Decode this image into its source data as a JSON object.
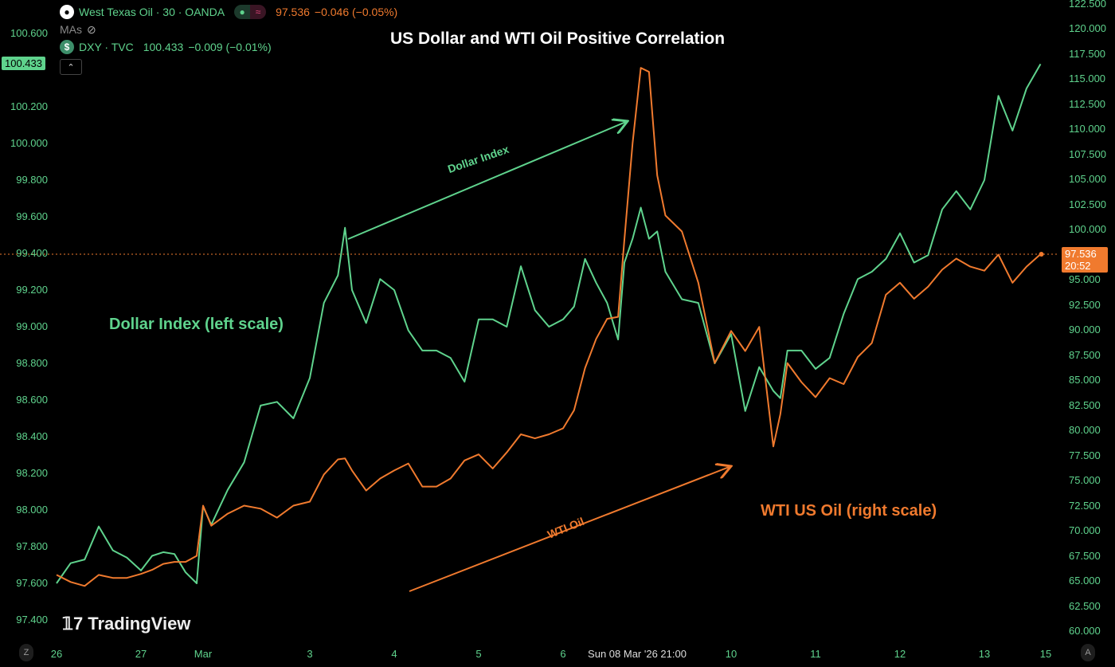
{
  "legend": {
    "main_symbol": "West Texas Oil · 30 · OANDA",
    "main_icon": "oil-drop-icon",
    "main_price": "97.536",
    "main_change": "−0.046 (−0.05%)",
    "mas_label": "MAs",
    "mas_icon": "eye-off-icon",
    "second_symbol": "DXY · TVC",
    "second_icon": "dollar-icon",
    "second_price": "100.433",
    "second_change": "−0.009 (−0.01%)",
    "collapse_icon": "chevron-up-icon"
  },
  "colors": {
    "dxy": "#5fd38d",
    "wti": "#f07a2e",
    "background": "#000000"
  },
  "brand": "TradingView",
  "axis_buttons": {
    "left": "Z",
    "right": "A"
  },
  "crosshair_label": "Sun 08 Mar '26   21:00",
  "price_badges": {
    "left": "100.433",
    "right_price": "97.536",
    "right_countdown": "20:52"
  },
  "chart_data": {
    "type": "line",
    "title": "US Dollar and WTI Oil Positive Correlation",
    "annotations": [
      {
        "text": "Dollar Index",
        "series": "dxy"
      },
      {
        "text": "WTI Oil",
        "series": "wti"
      },
      {
        "text": "Dollar Index (left scale)",
        "series": "dxy"
      },
      {
        "text": "WTI US Oil (right scale)",
        "series": "wti"
      }
    ],
    "x_ticks": [
      "26",
      "27",
      "Mar",
      "3",
      "4",
      "5",
      "6",
      "10",
      "11",
      "12",
      "13",
      "15"
    ],
    "left_axis": {
      "ylim": [
        97.4,
        100.6
      ],
      "ticks": [
        "97.400",
        "97.600",
        "97.800",
        "98.000",
        "98.200",
        "98.400",
        "98.600",
        "98.800",
        "99.000",
        "99.200",
        "99.400",
        "99.600",
        "99.800",
        "100.000",
        "100.200",
        "100.400",
        "100.600"
      ]
    },
    "right_axis": {
      "ylim": [
        60,
        122.5
      ],
      "ticks": [
        "60.000",
        "62.500",
        "65.000",
        "67.500",
        "70.000",
        "72.500",
        "75.000",
        "77.500",
        "80.000",
        "82.500",
        "85.000",
        "87.500",
        "90.000",
        "92.500",
        "95.000",
        "97.500",
        "100.000",
        "102.500",
        "105.000",
        "107.500",
        "110.000",
        "112.500",
        "115.000",
        "117.500",
        "120.000",
        "122.500"
      ]
    },
    "last_price_line": 97.536,
    "grid": false,
    "x": [
      "2026-02-26T00:00",
      "2026-02-26T04:00",
      "2026-02-26T08:00",
      "2026-02-26T12:00",
      "2026-02-26T16:00",
      "2026-02-26T20:00",
      "2026-02-27T00:00",
      "2026-02-27T04:00",
      "2026-02-27T08:00",
      "2026-02-27T12:00",
      "2026-02-27T16:00",
      "2026-02-27T20:00",
      "2026-03-01T22:00",
      "2026-03-02T00:00",
      "2026-03-02T04:00",
      "2026-03-02T08:00",
      "2026-03-02T12:00",
      "2026-03-02T16:00",
      "2026-03-02T20:00",
      "2026-03-03T00:00",
      "2026-03-03T04:00",
      "2026-03-03T08:00",
      "2026-03-03T10:00",
      "2026-03-03T12:00",
      "2026-03-03T16:00",
      "2026-03-03T20:00",
      "2026-03-04T00:00",
      "2026-03-04T04:00",
      "2026-03-04T08:00",
      "2026-03-04T12:00",
      "2026-03-04T16:00",
      "2026-03-04T20:00",
      "2026-03-05T00:00",
      "2026-03-05T04:00",
      "2026-03-05T08:00",
      "2026-03-05T12:00",
      "2026-03-05T16:00",
      "2026-03-05T20:00",
      "2026-03-06T00:00",
      "2026-03-06T04:00",
      "2026-03-06T08:00",
      "2026-03-06T12:00",
      "2026-03-06T16:00",
      "2026-03-06T20:00",
      "2026-03-08T22:00",
      "2026-03-09T00:00",
      "2026-03-09T02:00",
      "2026-03-09T04:00",
      "2026-03-09T06:00",
      "2026-03-09T08:00",
      "2026-03-09T12:00",
      "2026-03-09T16:00",
      "2026-03-09T20:00",
      "2026-03-10T00:00",
      "2026-03-10T04:00",
      "2026-03-10T08:00",
      "2026-03-10T12:00",
      "2026-03-10T14:00",
      "2026-03-10T16:00",
      "2026-03-10T20:00",
      "2026-03-11T00:00",
      "2026-03-11T04:00",
      "2026-03-11T08:00",
      "2026-03-11T12:00",
      "2026-03-11T16:00",
      "2026-03-11T20:00",
      "2026-03-12T00:00",
      "2026-03-12T04:00",
      "2026-03-12T08:00",
      "2026-03-12T12:00",
      "2026-03-12T16:00",
      "2026-03-12T20:00",
      "2026-03-13T00:00",
      "2026-03-13T04:00",
      "2026-03-13T08:00",
      "2026-03-13T12:00",
      "2026-03-13T16:00"
    ],
    "series": [
      {
        "key": "dxy",
        "axis": "left",
        "values": [
          97.6,
          97.71,
          97.73,
          97.91,
          97.78,
          97.74,
          97.67,
          97.75,
          97.77,
          97.76,
          97.66,
          97.6,
          98.02,
          97.92,
          98.11,
          98.26,
          98.57,
          98.59,
          98.5,
          98.72,
          99.13,
          99.28,
          99.54,
          99.2,
          99.02,
          99.26,
          99.2,
          98.98,
          98.87,
          98.87,
          98.83,
          98.7,
          99.04,
          99.04,
          99.0,
          99.33,
          99.09,
          99.0,
          99.04,
          99.11,
          99.37,
          99.24,
          99.13,
          98.93,
          99.35,
          99.48,
          99.65,
          99.48,
          99.52,
          99.3,
          99.15,
          99.13,
          98.8,
          98.96,
          98.54,
          98.78,
          98.65,
          98.61,
          98.87,
          98.87,
          98.77,
          98.83,
          99.07,
          99.26,
          99.3,
          99.37,
          99.51,
          99.35,
          99.39,
          99.64,
          99.74,
          99.64,
          99.8,
          100.26,
          100.07,
          100.3,
          100.433
        ]
      },
      {
        "key": "wti",
        "axis": "right",
        "values": [
          65.6,
          64.9,
          64.5,
          65.6,
          65.3,
          65.3,
          65.7,
          66.1,
          66.7,
          66.9,
          66.9,
          67.5,
          72.5,
          70.5,
          71.7,
          72.5,
          72.2,
          71.3,
          72.5,
          72.9,
          75.6,
          77.1,
          77.2,
          76.0,
          74.0,
          75.2,
          76.0,
          76.7,
          74.4,
          74.4,
          75.2,
          77.0,
          77.6,
          76.2,
          77.8,
          79.6,
          79.2,
          79.6,
          80.2,
          82.0,
          86.2,
          89.1,
          91.1,
          91.3,
          99.0,
          108.6,
          116.1,
          115.7,
          105.4,
          101.4,
          99.8,
          94.7,
          86.7,
          89.9,
          87.9,
          90.3,
          78.4,
          81.6,
          86.7,
          84.8,
          83.3,
          85.2,
          84.6,
          87.3,
          88.7,
          93.5,
          94.7,
          93.1,
          94.3,
          96.0,
          97.1,
          96.3,
          95.9,
          97.5,
          94.7,
          96.3,
          97.536
        ]
      }
    ]
  }
}
